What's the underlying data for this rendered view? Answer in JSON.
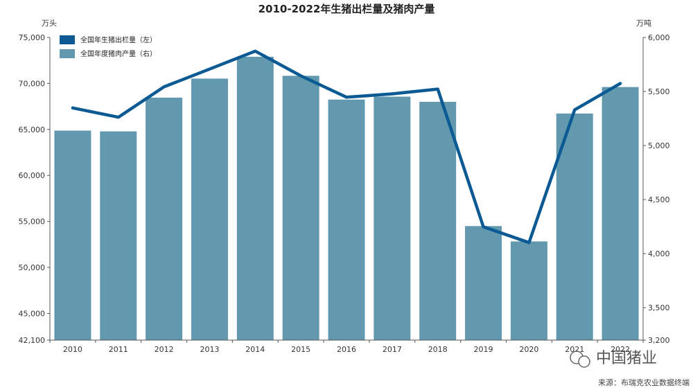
{
  "chart_data": {
    "type": "bar+line",
    "title": "2010-2022年生猪出栏量及猪肉产量",
    "categories": [
      "2010",
      "2011",
      "2012",
      "2013",
      "2014",
      "2015",
      "2016",
      "2017",
      "2018",
      "2019",
      "2020",
      "2021",
      "2022"
    ],
    "series": [
      {
        "name": "全国年生猪出栏量（左）",
        "type": "line",
        "axis": "left",
        "color": "#0b5a94",
        "values": [
          67333,
          66326,
          69628,
          71557,
          73510,
          70825,
          68502,
          68861,
          69382,
          54419,
          52704,
          67128,
          69995
        ]
      },
      {
        "name": "全国年度猪肉产量（右）",
        "type": "bar",
        "axis": "right",
        "color": "#6399ae",
        "values": [
          5138,
          5131,
          5443,
          5619,
          5821,
          5645,
          5425,
          5452,
          5404,
          4255,
          4113,
          5296,
          5541
        ]
      }
    ],
    "y_left": {
      "unit": "万头",
      "min": 42100,
      "max": 75000,
      "ticks": [
        42100,
        45000,
        50000,
        55000,
        60000,
        65000,
        70000,
        75000
      ]
    },
    "y_right": {
      "unit": "万吨",
      "min": 3200,
      "max": 6000,
      "ticks": [
        3200,
        3500,
        4000,
        4500,
        5000,
        5500,
        6000
      ]
    },
    "grid": false,
    "legend": "top-left"
  },
  "source_text": "来源：布瑞克农业数据终端",
  "watermark_text": "中国猪业"
}
